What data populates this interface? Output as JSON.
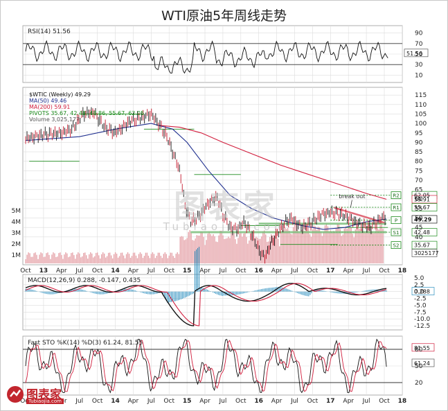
{
  "title": "WTI原油5年周线走势",
  "watermark": {
    "main": "图表家",
    "sub": "Tubiaojia.com"
  },
  "logo": {
    "text": "图表家",
    "url": "Tubiaojia.com"
  },
  "colors": {
    "price": "#111111",
    "ma50": "#1f2f8f",
    "ma200": "#d11d3c",
    "pivots": "#1a8a1a",
    "volume": "#e6a4aa",
    "macd_hist": "#2c8fbf",
    "grid": "#dcdcdc"
  },
  "chart_data": [
    {
      "type": "line",
      "title": "RSI(14) 51.56",
      "series": [
        {
          "name": "RSI(14)",
          "last": 51.56
        }
      ],
      "y_ticks": [
        "90",
        "70",
        "50",
        "30",
        "10"
      ],
      "ylim": [
        0,
        100
      ],
      "levels": [
        70,
        30
      ],
      "value_tag": "51.56"
    },
    {
      "type": "line",
      "title": "$WTIC (Weekly) 49.29",
      "series": [
        {
          "name": "MA(50)",
          "last": 49.46
        },
        {
          "name": "MA(200)",
          "last": 59.91
        },
        {
          "name": "PIVOTS",
          "values": [
            35.67,
            42.48,
            48.86,
            55.67,
            62.05
          ]
        }
      ],
      "legend": [
        "$WTIC (Weekly) 49.29",
        "MA(50) 49.46",
        "MA(200) 59.91",
        "PIVOTS 35.67, 42.48, 48.86, 55.67, 62.05",
        "Volume 3,025,177"
      ],
      "y_ticks": [
        "115",
        "110",
        "105",
        "100",
        "95",
        "90",
        "85",
        "80",
        "75",
        "70",
        "65",
        "60",
        "55",
        "50",
        "45",
        "40"
      ],
      "volume_ticks": [
        "5M",
        "4M",
        "3M",
        "2M",
        "1M"
      ],
      "ylim": [
        26,
        118
      ],
      "x_ticks": [
        "Oct",
        "13",
        "Apr",
        "Jul",
        "Oct",
        "14",
        "Apr",
        "Jul",
        "Oct",
        "15",
        "Apr",
        "Jul",
        "Oct",
        "16",
        "Apr",
        "Jul",
        "Oct",
        "17",
        "Apr",
        "Jul",
        "Oct",
        "18"
      ],
      "price_points": [
        [
          2012.75,
          92
        ],
        [
          2013.0,
          94
        ],
        [
          2013.25,
          95
        ],
        [
          2013.4,
          97
        ],
        [
          2013.55,
          105
        ],
        [
          2013.7,
          106
        ],
        [
          2013.85,
          98
        ],
        [
          2014.0,
          95
        ],
        [
          2014.2,
          101
        ],
        [
          2014.35,
          103
        ],
        [
          2014.5,
          105
        ],
        [
          2014.6,
          100
        ],
        [
          2014.72,
          93
        ],
        [
          2014.8,
          85
        ],
        [
          2014.9,
          75
        ],
        [
          2014.97,
          57
        ],
        [
          2015.05,
          48
        ],
        [
          2015.15,
          50
        ],
        [
          2015.3,
          58
        ],
        [
          2015.42,
          61
        ],
        [
          2015.5,
          52
        ],
        [
          2015.6,
          45
        ],
        [
          2015.7,
          44
        ],
        [
          2015.8,
          48
        ],
        [
          2015.92,
          40
        ],
        [
          2016.0,
          33
        ],
        [
          2016.08,
          29
        ],
        [
          2016.18,
          37
        ],
        [
          2016.35,
          47
        ],
        [
          2016.45,
          50
        ],
        [
          2016.6,
          45
        ],
        [
          2016.75,
          48
        ],
        [
          2016.88,
          52
        ],
        [
          2017.0,
          53
        ],
        [
          2017.15,
          52
        ],
        [
          2017.3,
          49
        ],
        [
          2017.45,
          46
        ],
        [
          2017.55,
          45
        ],
        [
          2017.65,
          48
        ],
        [
          2017.75,
          51
        ],
        [
          2017.78,
          49.29
        ]
      ],
      "ma50_points": [
        [
          2012.75,
          91
        ],
        [
          2013.5,
          93
        ],
        [
          2014.0,
          97
        ],
        [
          2014.5,
          100
        ],
        [
          2014.8,
          97
        ],
        [
          2015.0,
          90
        ],
        [
          2015.3,
          75
        ],
        [
          2015.6,
          62
        ],
        [
          2015.9,
          55
        ],
        [
          2016.2,
          50
        ],
        [
          2016.6,
          46
        ],
        [
          2016.9,
          44
        ],
        [
          2017.2,
          45
        ],
        [
          2017.5,
          48
        ],
        [
          2017.78,
          49.46
        ]
      ],
      "ma200_points": [
        [
          2014.6,
          99
        ],
        [
          2014.9,
          98
        ],
        [
          2015.2,
          95
        ],
        [
          2015.5,
          90
        ],
        [
          2015.9,
          84
        ],
        [
          2016.3,
          78
        ],
        [
          2016.7,
          73
        ],
        [
          2017.1,
          68
        ],
        [
          2017.5,
          63
        ],
        [
          2017.78,
          59.91
        ]
      ],
      "pivot_labels": [
        "R2",
        "R1",
        "P",
        "S1",
        "S2"
      ],
      "value_tags": [
        "62.05",
        "59.91",
        "55.67",
        "49.29",
        "42.48",
        "35.67",
        "3025177"
      ],
      "annotation": "break out"
    },
    {
      "type": "line",
      "title": "MACD(12,26,9) 0.288, -0.147, 0.435",
      "series": [
        {
          "name": "MACD",
          "last": 0.288
        },
        {
          "name": "Signal",
          "last": -0.147
        },
        {
          "name": "Histogram",
          "last": 0.435
        }
      ],
      "y_ticks": [
        "5.0",
        "2.5",
        "0.0",
        "-2.5",
        "-5.0",
        "-7.5",
        "-10.0",
        "-12.5"
      ],
      "ylim": [
        -13.5,
        5.5
      ],
      "value_tag": "0.288"
    },
    {
      "type": "line",
      "title": "Fast STO %K(14) %D(3) 61.24, 81.55",
      "series": [
        {
          "name": "%K(14)",
          "last": 61.24
        },
        {
          "name": "%D(3)",
          "last": 81.55
        }
      ],
      "y_ticks": [
        "80",
        "50",
        "20"
      ],
      "ylim": [
        0,
        100
      ],
      "levels": [
        80,
        20
      ],
      "value_tags": [
        "81.55",
        "61.24"
      ],
      "x_ticks": [
        "Oct",
        "13",
        "Apr",
        "Jul",
        "Oct",
        "14",
        "Apr",
        "Jul",
        "Oct",
        "15",
        "Apr",
        "Jul",
        "Oct",
        "16",
        "Apr",
        "Jul",
        "Oct",
        "17",
        "Apr",
        "Jul",
        "Oct",
        "18"
      ]
    }
  ]
}
